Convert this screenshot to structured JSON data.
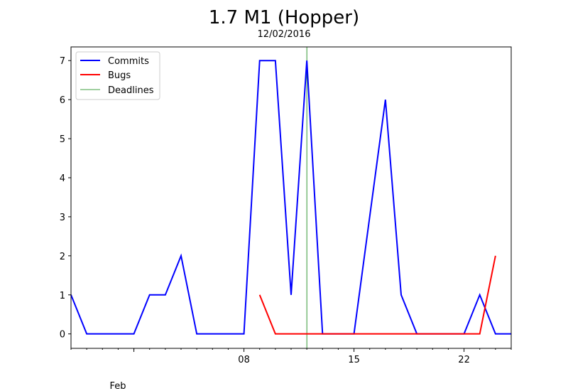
{
  "chart_data": {
    "type": "line",
    "title": "1.7 M1 (Hopper)",
    "subtitle": "12/02/2016",
    "xlim": [
      "2016-01-28",
      "2016-02-25"
    ],
    "ylim": [
      -0.37,
      7.35
    ],
    "grid": false,
    "legend": {
      "position": "top-left",
      "entries": [
        {
          "label": "Commits",
          "color": "#0000ff",
          "width": "thick"
        },
        {
          "label": "Bugs",
          "color": "#ff0000",
          "width": "thick"
        },
        {
          "label": "Deadlines",
          "color": "#008000",
          "width": "thin"
        }
      ]
    },
    "x_ticks": [
      {
        "date": "2016-02-08",
        "label": "08"
      },
      {
        "date": "2016-02-15",
        "label": "15"
      },
      {
        "date": "2016-02-22",
        "label": "22"
      }
    ],
    "x_minor_ticks": [
      "2016-01-28",
      "2016-01-29",
      "2016-01-30",
      "2016-01-31",
      "2016-02-01",
      "2016-02-02",
      "2016-02-03",
      "2016-02-04",
      "2016-02-05",
      "2016-02-06",
      "2016-02-07",
      "2016-02-09",
      "2016-02-10",
      "2016-02-11",
      "2016-02-12",
      "2016-02-13",
      "2016-02-14",
      "2016-02-16",
      "2016-02-17",
      "2016-02-18",
      "2016-02-19",
      "2016-02-20",
      "2016-02-21",
      "2016-02-23",
      "2016-02-24",
      "2016-02-25"
    ],
    "x_major_unlabeled": [
      "2016-02-01"
    ],
    "month_label": "Feb",
    "y_ticks": [
      0,
      1,
      2,
      3,
      4,
      5,
      6,
      7
    ],
    "series": [
      {
        "name": "Commits",
        "color": "#0000ff",
        "points": [
          [
            "2016-01-28",
            1
          ],
          [
            "2016-01-29",
            0
          ],
          [
            "2016-01-30",
            0
          ],
          [
            "2016-01-31",
            0
          ],
          [
            "2016-02-01",
            0
          ],
          [
            "2016-02-02",
            1
          ],
          [
            "2016-02-03",
            1
          ],
          [
            "2016-02-04",
            2
          ],
          [
            "2016-02-05",
            0
          ],
          [
            "2016-02-06",
            0
          ],
          [
            "2016-02-07",
            0
          ],
          [
            "2016-02-08",
            0
          ],
          [
            "2016-02-09",
            7
          ],
          [
            "2016-02-10",
            7
          ],
          [
            "2016-02-11",
            1
          ],
          [
            "2016-02-12",
            7
          ],
          [
            "2016-02-13",
            0
          ],
          [
            "2016-02-14",
            0
          ],
          [
            "2016-02-15",
            0
          ],
          [
            "2016-02-16",
            3
          ],
          [
            "2016-02-17",
            6
          ],
          [
            "2016-02-18",
            1
          ],
          [
            "2016-02-19",
            0
          ],
          [
            "2016-02-20",
            0
          ],
          [
            "2016-02-21",
            0
          ],
          [
            "2016-02-22",
            0
          ],
          [
            "2016-02-23",
            1
          ],
          [
            "2016-02-24",
            0
          ],
          [
            "2016-02-25",
            0
          ]
        ]
      },
      {
        "name": "Bugs",
        "color": "#ff0000",
        "points": [
          [
            "2016-02-09",
            1
          ],
          [
            "2016-02-10",
            0
          ],
          [
            "2016-02-11",
            0
          ],
          [
            "2016-02-12",
            0
          ],
          [
            "2016-02-13",
            0
          ],
          [
            "2016-02-14",
            0
          ],
          [
            "2016-02-15",
            0
          ],
          [
            "2016-02-16",
            0
          ],
          [
            "2016-02-17",
            0
          ],
          [
            "2016-02-18",
            0
          ],
          [
            "2016-02-19",
            0
          ],
          [
            "2016-02-20",
            0
          ],
          [
            "2016-02-21",
            0
          ],
          [
            "2016-02-22",
            0
          ],
          [
            "2016-02-23",
            0
          ],
          [
            "2016-02-24",
            2
          ]
        ]
      }
    ],
    "deadlines": [
      {
        "name": "Deadlines",
        "date": "2016-02-12",
        "color": "#008000"
      }
    ]
  }
}
